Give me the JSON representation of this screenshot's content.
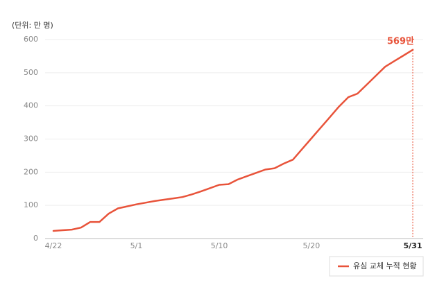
{
  "chart_data": {
    "type": "line",
    "unit_label": "(단위: 만 명)",
    "categories": [
      "4/22",
      null,
      null,
      null,
      null,
      null,
      null,
      null,
      null,
      "5/1",
      null,
      null,
      null,
      null,
      null,
      null,
      null,
      null,
      "5/10",
      null,
      null,
      null,
      null,
      null,
      null,
      null,
      null,
      null,
      "5/20",
      null,
      null,
      null,
      null,
      null,
      null,
      null,
      null,
      null,
      null,
      "5/31"
    ],
    "series": [
      {
        "name": "유심 교체 누적 현황",
        "color": "#e8533a",
        "values": [
          23,
          25,
          27,
          33,
          50,
          50,
          75,
          91,
          97,
          103,
          108,
          113,
          117,
          121,
          125,
          133,
          142,
          152,
          162,
          164,
          178,
          188,
          198,
          208,
          212,
          226,
          238,
          270,
          302,
          334,
          366,
          398,
          426,
          437,
          464,
          491,
          518,
          535,
          552,
          569
        ],
        "value_labels": [
          null,
          null,
          null,
          null,
          null,
          null,
          null,
          null,
          null,
          null,
          null,
          null,
          null,
          null,
          null,
          null,
          null,
          null,
          null,
          null,
          null,
          null,
          null,
          null,
          null,
          null,
          null,
          null,
          null,
          null,
          null,
          null,
          null,
          null,
          null,
          null,
          null,
          null,
          null,
          "569만"
        ]
      }
    ],
    "ylim": [
      0,
      600
    ],
    "yticks": [
      0,
      100,
      200,
      300,
      400,
      500,
      600
    ],
    "grid": true,
    "legend": "bottom-right"
  }
}
